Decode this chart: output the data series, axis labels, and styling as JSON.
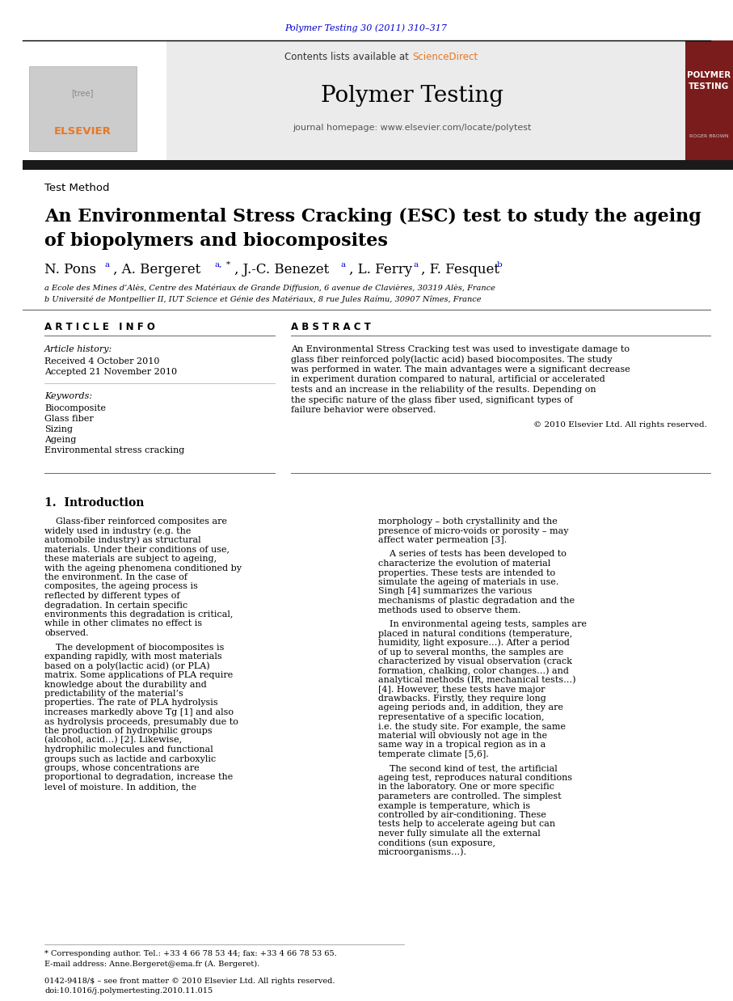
{
  "journal_ref": "Polymer Testing 30 (2011) 310–317",
  "journal_ref_color": "#0000CC",
  "contents_line": "Contents lists available at ",
  "sciencedirect": "ScienceDirect",
  "sciencedirect_color": "#FF6600",
  "journal_name": "Polymer Testing",
  "journal_homepage": "journal homepage: www.elsevier.com/locate/polytest",
  "section_label": "Test Method",
  "article_title_line1": "An Environmental Stress Cracking (ESC) test to study the ageing",
  "article_title_line2": "of biopolymers and biocomposites",
  "affil_a": "a Ecole des Mines d’Alès, Centre des Matériaux de Grande Diffusion, 6 avenue de Clavières, 30319 Alès, France",
  "affil_b": "b Université de Montpellier II, IUT Science et Génie des Matériaux, 8 rue Jules Raímu, 30907 Nîmes, France",
  "article_info_header": "A R T I C L E   I N F O",
  "abstract_header": "A B S T R A C T",
  "article_history_label": "Article history:",
  "received": "Received 4 October 2010",
  "accepted": "Accepted 21 November 2010",
  "keywords_label": "Keywords:",
  "keywords": [
    "Biocomposite",
    "Glass fiber",
    "Sizing",
    "Ageing",
    "Environmental stress cracking"
  ],
  "abstract_text": "An Environmental Stress Cracking test was used to investigate damage to glass fiber reinforced poly(lactic acid) based biocomposites. The study was performed in water. The main advantages were a significant decrease in experiment duration compared to natural, artificial or accelerated tests and an increase in the reliability of the results. Depending on the specific nature of the glass fiber used, significant types of failure behavior were observed.",
  "copyright": "© 2010 Elsevier Ltd. All rights reserved.",
  "intro_header": "1.  Introduction",
  "intro_col1_para1": "Glass-fiber reinforced composites are widely used in industry (e.g. the automobile industry) as structural materials. Under their conditions of use, these materials are subject to ageing, with the ageing phenomena conditioned by the environment. In the case of composites, the ageing process is reflected by different types of degradation. In certain specific environments this degradation is critical, while in other climates no effect is observed.",
  "intro_col1_para2": "The development of biocomposites is expanding rapidly, with most materials based on a poly(lactic acid) (or PLA) matrix. Some applications of PLA require knowledge about the durability and predictability of the material’s properties. The rate of PLA hydrolysis increases markedly above Tg [1] and also as hydrolysis proceeds, presumably due to the production of hydrophilic groups (alcohol, acid…) [2]. Likewise, hydrophilic molecules and functional groups such as lactide and carboxylic groups, whose concentrations are proportional to degradation, increase the level of moisture. In addition, the",
  "intro_col2_para1": "morphology – both crystallinity and the presence of micro-voids or porosity – may affect water permeation [3].",
  "intro_col2_para2": "A series of tests has been developed to characterize the evolution of material properties. These tests are intended to simulate the ageing of materials in use. Singh [4] summarizes the various mechanisms of plastic degradation and the methods used to observe them.",
  "intro_col2_para3": "In environmental ageing tests, samples are placed in natural conditions (temperature, humidity, light exposure…). After a period of up to several months, the samples are characterized by visual observation (crack formation, chalking, color changes…) and analytical methods (IR, mechanical tests…) [4]. However, these tests have major drawbacks. Firstly, they require long ageing periods and, in addition, they are representative of a specific location, i.e. the study site. For example, the same material will obviously not age in the same way in a tropical region as in a temperate climate [5,6].",
  "intro_col2_para4": "The second kind of test, the artificial ageing test, reproduces natural conditions in the laboratory. One or more specific parameters are controlled. The simplest example is temperature, which is controlled by air-conditioning. These tests help to accelerate ageing but can never fully simulate all the external conditions (sun exposure, microorganisms…).",
  "footer_line1": "* Corresponding author. Tel.: +33 4 66 78 53 44; fax: +33 4 66 78 53 65.",
  "footer_line2": "E-mail address: Anne.Bergeret@ema.fr (A. Bergeret).",
  "footer_line3": "0142-9418/$ – see front matter © 2010 Elsevier Ltd. All rights reserved.",
  "footer_line4": "doi:10.1016/j.polymertesting.2010.11.015",
  "bg_color": "#FFFFFF",
  "dark_red_bg": "#7B1C1C",
  "black_bar_color": "#1a1a1a",
  "orange_color": "#E87722",
  "blue_link_color": "#0000CC"
}
